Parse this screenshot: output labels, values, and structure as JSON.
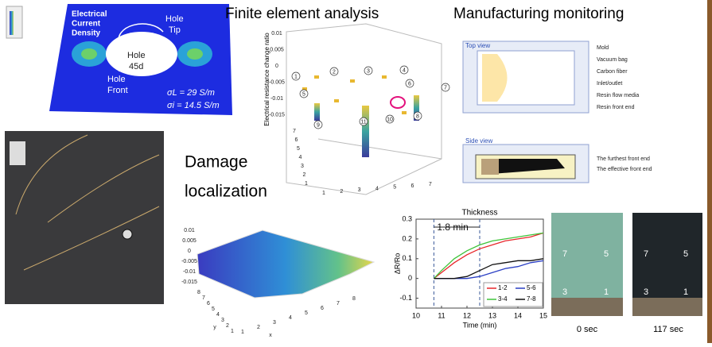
{
  "fe_panel": {
    "title": "Finite element analysis",
    "label": [
      "Electrical",
      "Current",
      "Density"
    ],
    "hole_tip": [
      "Hole",
      "Tip"
    ],
    "hole": [
      "Hole",
      "45d"
    ],
    "hole_front": [
      "Hole",
      "Front"
    ],
    "sigma_l": "σL = 29 S/m",
    "sigma_i": "σi = 14.5 S/m"
  },
  "bar3d": {
    "zlabel": "Electrical resistance change ratio",
    "zticks": [
      "0.01",
      "0.005",
      "0",
      "-0.005",
      "-0.01",
      "-0.015"
    ],
    "xticks": [
      "1",
      "2",
      "3",
      "4",
      "5",
      "6",
      "7"
    ],
    "yticks": [
      "7",
      "6",
      "5",
      "4",
      "3",
      "2",
      "1"
    ],
    "markers": [
      "1",
      "2",
      "3",
      "4",
      "5",
      "6",
      "7",
      "8",
      "9",
      "10",
      "11"
    ]
  },
  "manufacturing": {
    "title": "Manufacturing monitoring",
    "top_view": "Top view",
    "top_labels": [
      "Mold",
      "Vacuum bag",
      "Carbon fiber",
      "Inlet/outlet",
      "Resin flow media",
      "Resin front end"
    ],
    "side_view": "Side view",
    "side_labels": [
      "The furthest front end",
      "The effective front end"
    ]
  },
  "damage": {
    "title": [
      "Damage",
      "localization"
    ],
    "zticks": [
      "0.01",
      "0.005",
      "0",
      "-0.005",
      "-0.01",
      "-0.015"
    ],
    "yticks": [
      "8",
      "7",
      "6",
      "5",
      "4",
      "3",
      "2",
      "1"
    ],
    "xticks": [
      "1",
      "2",
      "3",
      "4",
      "5",
      "6",
      "7",
      "8"
    ],
    "xlabel": "x",
    "ylabel": "y"
  },
  "chart_data": {
    "type": "line",
    "title": "Thickness",
    "x_label": "Time (min)",
    "y_label": "ΔR/Ro",
    "annotation": "1.8 min",
    "vlines": [
      10.7,
      12.5
    ],
    "x": [
      10.7,
      11,
      11.5,
      12,
      12.5,
      13,
      13.5,
      14,
      14.5,
      15
    ],
    "series": [
      {
        "name": "1-2",
        "color": "#e8262b",
        "values": [
          0,
          0.03,
          0.08,
          0.12,
          0.15,
          0.17,
          0.19,
          0.2,
          0.21,
          0.23
        ]
      },
      {
        "name": "5-6",
        "color": "#2b3fc4",
        "values": [
          0,
          0,
          0,
          0,
          0.01,
          0.03,
          0.05,
          0.06,
          0.08,
          0.09
        ]
      },
      {
        "name": "3-4",
        "color": "#3fc43a",
        "values": [
          0,
          0.04,
          0.1,
          0.14,
          0.17,
          0.19,
          0.2,
          0.21,
          0.22,
          0.23
        ]
      },
      {
        "name": "7-8",
        "color": "#111111",
        "values": [
          0,
          0,
          0,
          0.01,
          0.04,
          0.07,
          0.08,
          0.09,
          0.09,
          0.1
        ]
      }
    ],
    "xlim": [
      10,
      15
    ],
    "xticks": [
      10,
      11,
      12,
      13,
      14,
      15
    ],
    "ylim": [
      -0.15,
      0.3
    ],
    "yticks": [
      -0.1,
      0,
      0.1,
      0.2,
      0.3
    ]
  },
  "photos": {
    "labels": [
      "7",
      "5",
      "3",
      "1"
    ],
    "captions": [
      "0 sec",
      "117 sec"
    ]
  }
}
